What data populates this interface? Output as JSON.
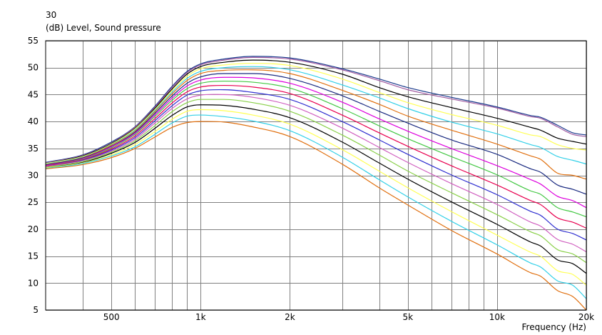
{
  "chart_data": {
    "type": "line",
    "title": "30",
    "ylabel": "(dB)  Level, Sound pressure",
    "xlabel": "Frequency  (Hz)",
    "x_scale": "log",
    "xlim": [
      300,
      20000
    ],
    "ylim": [
      5,
      55
    ],
    "grid": true,
    "y_ticks": [
      "5",
      "10",
      "15",
      "20",
      "25",
      "30",
      "35",
      "40",
      "45",
      "50",
      "55"
    ],
    "x_tick_labels": [
      {
        "value": 500,
        "label": "500"
      },
      {
        "value": 1000,
        "label": "1k"
      },
      {
        "value": 2000,
        "label": "2k"
      },
      {
        "value": 5000,
        "label": "5k"
      },
      {
        "value": 10000,
        "label": "10k"
      },
      {
        "value": 20000,
        "label": "20k"
      }
    ],
    "x_grid": [
      400,
      500,
      600,
      700,
      800,
      900,
      1000,
      2000,
      3000,
      4000,
      5000,
      6000,
      7000,
      8000,
      9000,
      10000,
      20000
    ],
    "x": [
      300,
      400,
      500,
      600,
      700,
      800,
      900,
      1000,
      1200,
      1500,
      2000,
      3000,
      4000,
      5000,
      7000,
      10000,
      13000,
      14000,
      16000,
      18000,
      20000
    ],
    "series": [
      {
        "color": "#1a3a8c",
        "values": [
          32.4,
          33.8,
          36.2,
          39.0,
          42.8,
          46.5,
          49.3,
          50.7,
          51.6,
          52.1,
          51.8,
          49.8,
          47.9,
          46.3,
          44.5,
          42.7,
          41.1,
          40.8,
          39.3,
          37.9,
          37.5
        ]
      },
      {
        "color": "#a05aa0",
        "values": [
          32.3,
          33.7,
          36.0,
          38.9,
          42.6,
          46.3,
          49.1,
          50.5,
          51.4,
          51.9,
          51.6,
          49.6,
          47.6,
          45.9,
          44.2,
          42.5,
          40.9,
          40.6,
          39.0,
          37.6,
          37.2
        ]
      },
      {
        "color": "#000000",
        "values": [
          32.2,
          33.6,
          35.9,
          38.7,
          42.4,
          46.0,
          48.8,
          50.2,
          51.0,
          51.4,
          51.0,
          48.8,
          46.3,
          44.6,
          42.6,
          40.6,
          38.9,
          38.4,
          36.9,
          36.3,
          35.8
        ]
      },
      {
        "color": "#ffff55",
        "values": [
          32.2,
          33.5,
          35.8,
          38.6,
          42.2,
          45.7,
          48.4,
          49.8,
          50.5,
          50.8,
          50.4,
          47.9,
          45.4,
          43.5,
          41.3,
          39.3,
          37.5,
          37.2,
          35.7,
          35.0,
          34.7
        ]
      },
      {
        "color": "#33d0e8",
        "values": [
          32.1,
          33.4,
          35.7,
          38.4,
          42.0,
          45.4,
          48.0,
          49.3,
          50.0,
          50.2,
          49.6,
          46.8,
          44.4,
          42.4,
          39.9,
          37.7,
          35.7,
          35.2,
          33.5,
          32.8,
          32.1
        ]
      },
      {
        "color": "#e07010",
        "values": [
          32.0,
          33.3,
          35.6,
          38.2,
          41.8,
          45.1,
          47.6,
          48.9,
          49.5,
          49.6,
          48.9,
          45.8,
          43.2,
          41.0,
          38.4,
          35.8,
          33.6,
          33.0,
          30.4,
          30.0,
          29.3
        ]
      },
      {
        "color": "#1a2a80",
        "values": [
          31.9,
          33.2,
          35.4,
          38.0,
          41.5,
          44.7,
          47.1,
          48.3,
          48.9,
          48.9,
          48.0,
          44.8,
          41.9,
          39.7,
          36.6,
          33.9,
          31.2,
          30.6,
          28.2,
          27.4,
          26.5
        ]
      },
      {
        "color": "#dd00dd",
        "values": [
          31.8,
          33.1,
          35.3,
          37.8,
          41.2,
          44.3,
          46.6,
          47.7,
          48.2,
          48.1,
          47.1,
          43.6,
          40.5,
          38.2,
          35.0,
          31.8,
          29.2,
          28.4,
          26.1,
          25.3,
          24.0
        ]
      },
      {
        "color": "#44c844",
        "values": [
          31.7,
          33.0,
          35.1,
          37.6,
          40.9,
          43.9,
          46.1,
          47.1,
          47.5,
          47.3,
          46.2,
          42.4,
          39.2,
          36.8,
          33.5,
          30.1,
          27.1,
          26.5,
          24.0,
          23.2,
          22.3
        ]
      },
      {
        "color": "#e80050",
        "values": [
          31.7,
          32.9,
          34.9,
          37.3,
          40.5,
          43.4,
          45.5,
          46.4,
          46.7,
          46.4,
          45.2,
          41.2,
          37.9,
          35.4,
          31.8,
          28.2,
          25.3,
          24.6,
          22.1,
          21.3,
          20.2
        ]
      },
      {
        "color": "#3030d0",
        "values": [
          31.6,
          32.8,
          34.7,
          37.0,
          40.1,
          42.9,
          44.9,
          45.7,
          45.9,
          45.4,
          44.1,
          40.0,
          36.6,
          33.9,
          30.1,
          26.4,
          23.3,
          22.6,
          20.0,
          19.2,
          18.0
        ]
      },
      {
        "color": "#d060c0",
        "values": [
          31.6,
          32.7,
          34.5,
          36.7,
          39.7,
          42.4,
          44.2,
          44.9,
          45.0,
          44.5,
          43.0,
          38.8,
          35.2,
          32.4,
          28.5,
          24.6,
          21.3,
          20.6,
          18.1,
          17.2,
          15.8
        ]
      },
      {
        "color": "#8ad04a",
        "values": [
          31.5,
          32.6,
          34.3,
          36.4,
          39.2,
          41.8,
          43.5,
          44.1,
          44.1,
          43.5,
          41.9,
          37.5,
          33.8,
          30.8,
          26.8,
          22.7,
          19.5,
          18.8,
          16.2,
          15.4,
          13.8
        ]
      },
      {
        "color": "#000000",
        "values": [
          31.4,
          32.4,
          34.1,
          36.1,
          38.7,
          41.1,
          42.7,
          43.1,
          43.0,
          42.3,
          40.7,
          36.2,
          32.3,
          29.3,
          25.1,
          20.9,
          17.6,
          16.9,
          14.3,
          13.6,
          11.8
        ]
      },
      {
        "color": "#ffff55",
        "values": [
          31.4,
          32.3,
          33.8,
          35.7,
          38.1,
          40.4,
          41.9,
          42.2,
          42.0,
          41.2,
          39.5,
          34.8,
          30.8,
          27.7,
          23.3,
          18.9,
          15.7,
          15.0,
          12.3,
          11.6,
          9.6
        ]
      },
      {
        "color": "#33d0e8",
        "values": [
          31.3,
          32.2,
          33.6,
          35.3,
          37.6,
          39.7,
          41.0,
          41.2,
          40.9,
          40.1,
          38.3,
          33.4,
          29.2,
          26.0,
          21.5,
          17.1,
          13.7,
          13.0,
          10.4,
          9.6,
          7.1
        ]
      },
      {
        "color": "#e07010",
        "values": [
          31.2,
          32.0,
          33.3,
          35.0,
          37.1,
          38.9,
          39.8,
          40.0,
          39.9,
          39.0,
          37.2,
          32.1,
          27.7,
          24.5,
          19.8,
          15.4,
          11.9,
          11.3,
          8.6,
          7.5,
          5.0
        ]
      }
    ]
  }
}
